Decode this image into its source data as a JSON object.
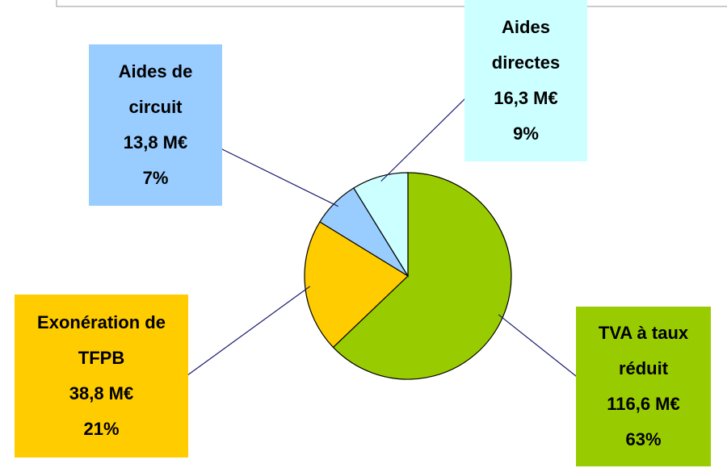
{
  "chart_data": {
    "type": "pie",
    "categories": [
      "TVA à taux réduit",
      "Exonération de TFPB",
      "Aides de circuit",
      "Aides directes"
    ],
    "values": [
      116.6,
      38.8,
      13.8,
      16.3
    ],
    "value_labels": [
      "116,6 M€",
      "38,8 M€",
      "13,8 M€",
      "16,3 M€"
    ],
    "percents": [
      63,
      21,
      7,
      9
    ],
    "percent_labels": [
      "63%",
      "21%",
      "7%",
      "9%"
    ],
    "colors": [
      "#99cc00",
      "#ffcc00",
      "#99ccff",
      "#ccffff"
    ]
  }
}
